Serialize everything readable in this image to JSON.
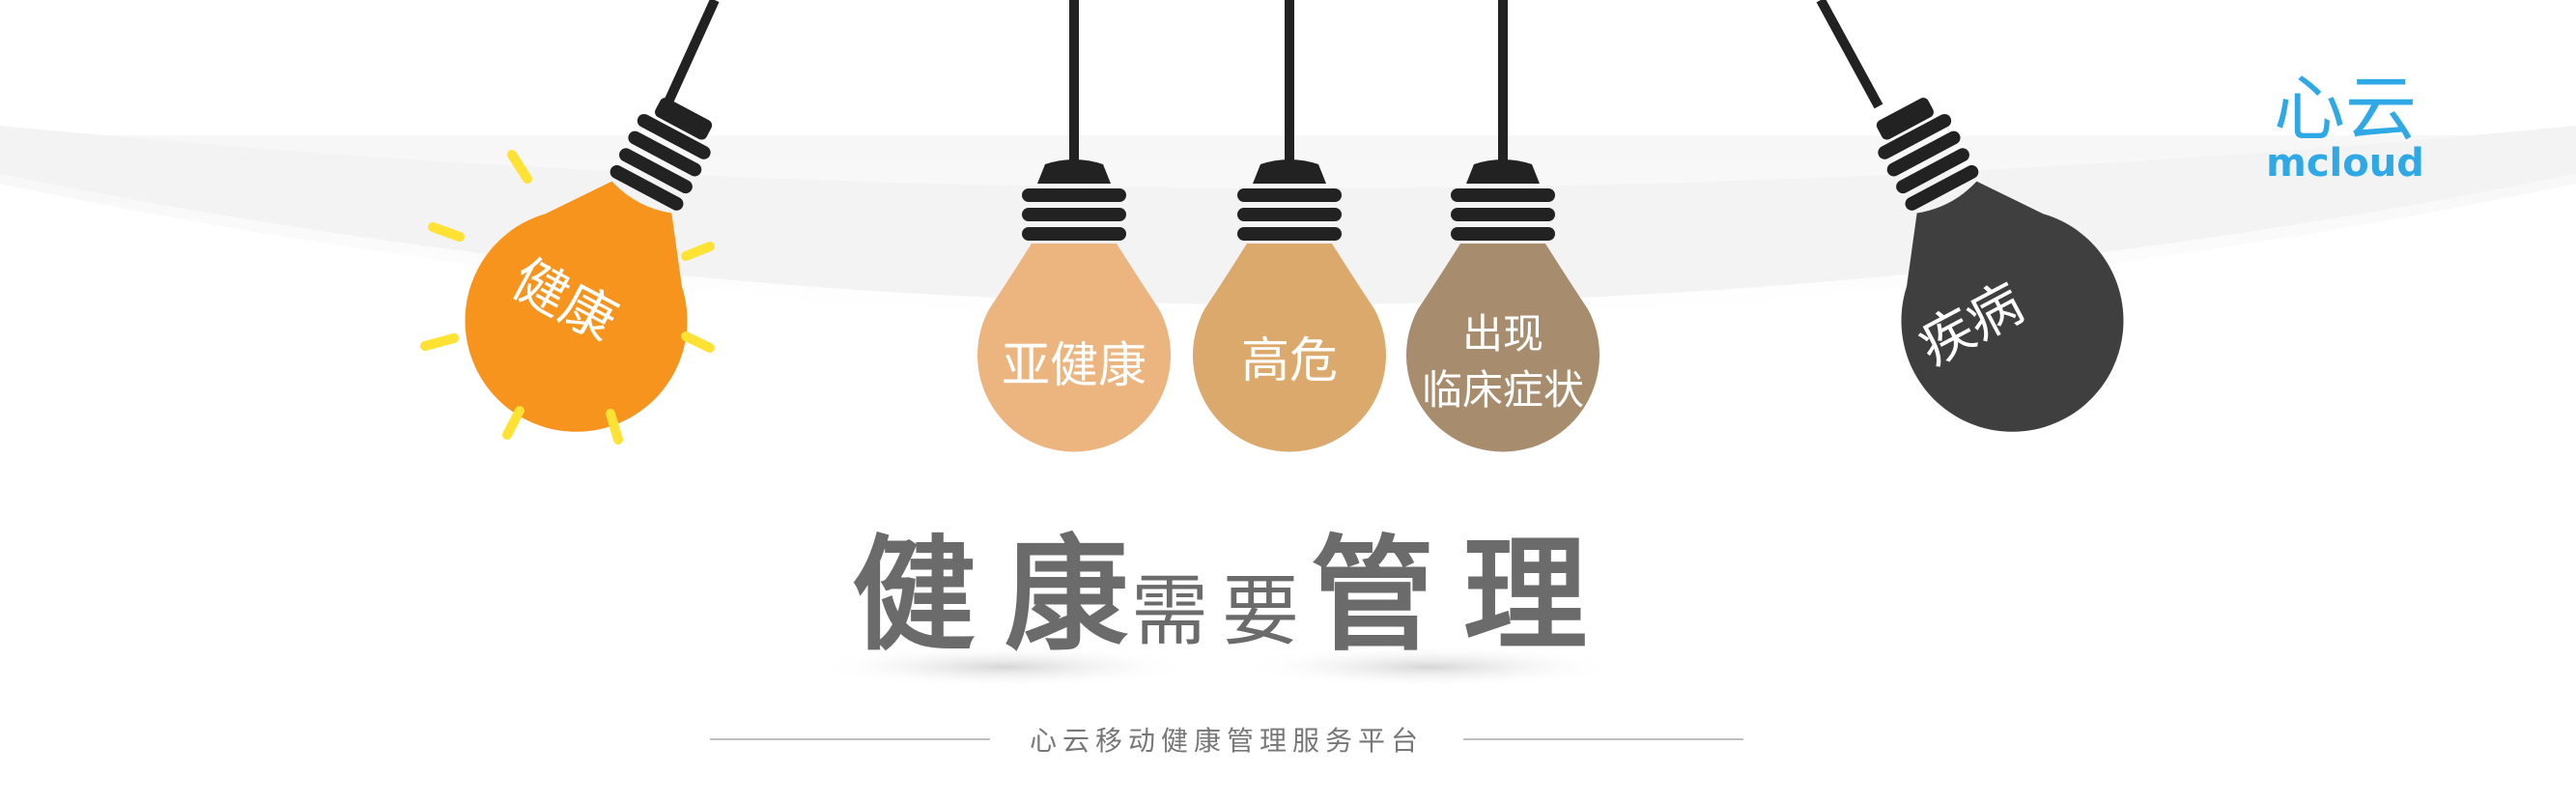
{
  "bulbs": [
    {
      "label": "健康",
      "color": "#f7941d"
    },
    {
      "label": "亚健康",
      "color": "#ecb47f"
    },
    {
      "label": "高危",
      "color": "#dca96d"
    },
    {
      "label_line1": "出现",
      "label_line2": "临床症状",
      "color": "#a88c6e"
    },
    {
      "label": "疾病",
      "color": "#3f3f3f"
    }
  ],
  "headline": {
    "word1": "健康",
    "word2": "需要",
    "word3": "管理"
  },
  "tagline": "心云移动健康管理服务平台",
  "logo": {
    "cn": "心云",
    "en": "mcloud"
  },
  "colors": {
    "accent_blue": "#2fa8e6",
    "ray_yellow": "#ffe234",
    "socket_black": "#222222",
    "headline_gray": "#6b6b6b"
  }
}
